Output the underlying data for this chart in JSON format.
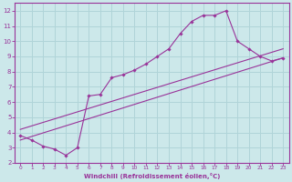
{
  "bg_color": "#cce8ea",
  "grid_color": "#b0d4d8",
  "line_color": "#993399",
  "marker_color": "#993399",
  "xlabel": "Windchill (Refroidissement éolien,°C)",
  "xlim": [
    -0.5,
    23.5
  ],
  "ylim": [
    2,
    12.5
  ],
  "yticks": [
    2,
    3,
    4,
    5,
    6,
    7,
    8,
    9,
    10,
    11,
    12
  ],
  "xticks": [
    0,
    1,
    2,
    3,
    4,
    5,
    6,
    7,
    8,
    9,
    10,
    11,
    12,
    13,
    14,
    15,
    16,
    17,
    18,
    19,
    20,
    21,
    22,
    23
  ],
  "line1_x": [
    0,
    1,
    2,
    3,
    4,
    5,
    6,
    7,
    8,
    9,
    10,
    11,
    12,
    13,
    14,
    15,
    16,
    17,
    18,
    19,
    20,
    21,
    22,
    23
  ],
  "line1_y": [
    3.8,
    3.5,
    3.1,
    2.9,
    2.5,
    3.0,
    6.4,
    6.5,
    7.6,
    7.8,
    8.1,
    8.5,
    9.0,
    9.5,
    10.5,
    11.3,
    11.7,
    11.7,
    12.0,
    10.0,
    9.5,
    9.0,
    8.7,
    8.9
  ],
  "line2_x": [
    0,
    23
  ],
  "line2_y": [
    3.5,
    8.9
  ],
  "line3_x": [
    0,
    23
  ],
  "line3_y": [
    4.2,
    9.5
  ],
  "xlabel_fontsize": 5.0,
  "tick_fontsize_x": 4.2,
  "tick_fontsize_y": 5.0
}
